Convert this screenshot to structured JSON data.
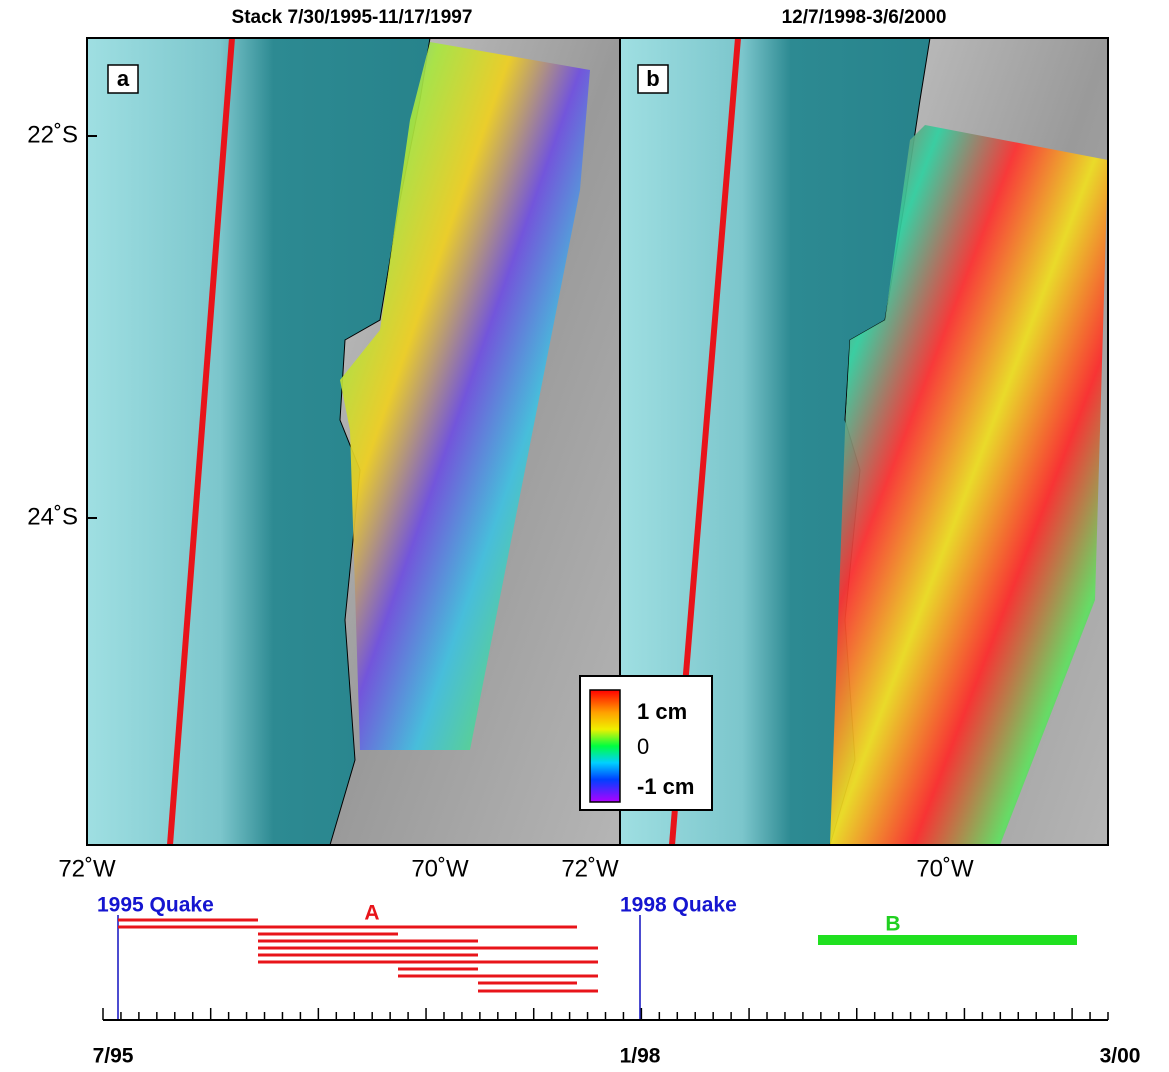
{
  "panels": [
    {
      "title": "Stack 7/30/1995-11/17/1997",
      "letter": "a",
      "lat_labels": [
        "22˚S",
        "24˚S"
      ],
      "lon_labels": [
        "72˚W",
        "70˚W"
      ]
    },
    {
      "title": "12/7/1998-3/6/2000",
      "letter": "b",
      "lon_labels": [
        "72˚W",
        "70˚W"
      ]
    }
  ],
  "colorbar": {
    "labels": [
      "1 cm",
      "0",
      "-1 cm"
    ]
  },
  "timeline": {
    "events": [
      "1995 Quake",
      "1998 Quake"
    ],
    "groups": [
      "A",
      "B"
    ],
    "axis_labels": [
      "7/95",
      "1/98",
      "3/00"
    ]
  }
}
